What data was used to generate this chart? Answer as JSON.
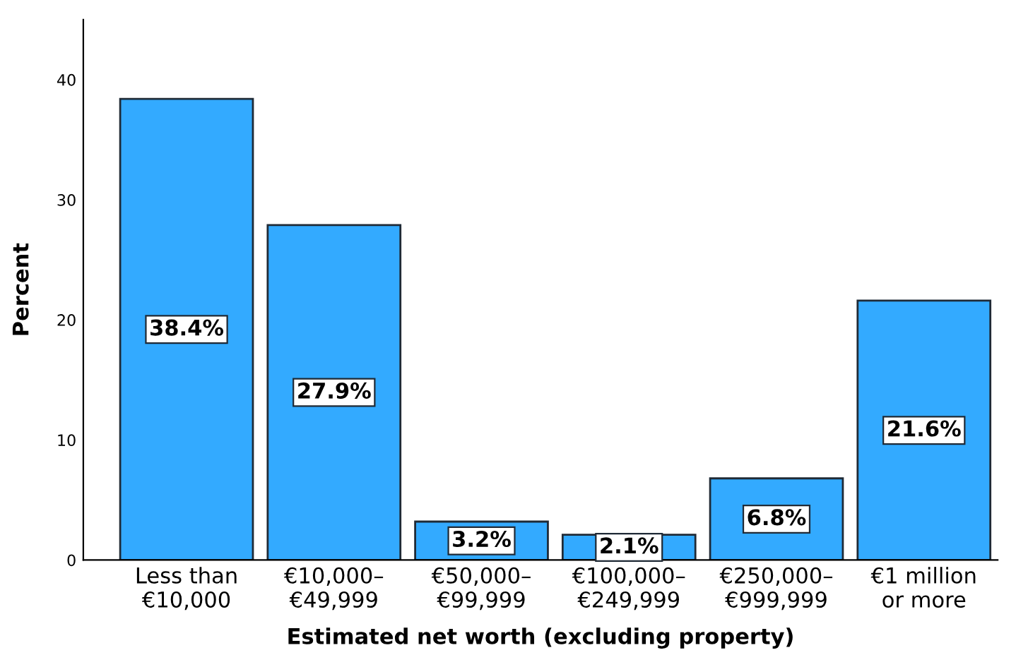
{
  "chart_data": {
    "type": "bar",
    "xlabel": "Estimated net worth (excluding property)",
    "ylabel": "Percent",
    "categories": [
      "Less than\n€10,000",
      "€10,000–\n€49,999",
      "€50,000–\n€99,999",
      "€100,000–\n€249,999",
      "€250,000–\n€999,999",
      "€1 million\nor more"
    ],
    "values": [
      38.4,
      27.9,
      3.2,
      2.1,
      6.8,
      21.6
    ],
    "value_labels": [
      "38.4%",
      "27.9%",
      "3.2%",
      "2.1%",
      "6.8%",
      "21.6%"
    ],
    "color": "#33aaff",
    "ylim": [
      0,
      45
    ],
    "yticks": [
      0,
      10,
      20,
      30,
      40
    ],
    "grid": false
  }
}
